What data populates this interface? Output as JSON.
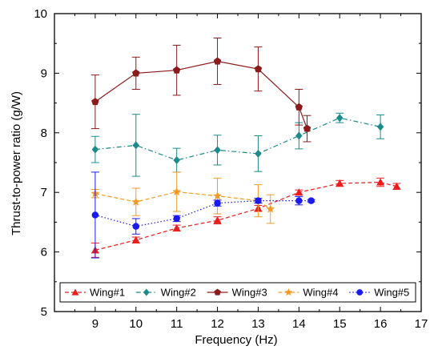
{
  "chart_data": {
    "type": "line",
    "title": "",
    "xlabel": "Frequency (Hz)",
    "ylabel": "Thrust-to-power ratio (g/W)",
    "xlim": [
      8,
      17
    ],
    "ylim": [
      5,
      10
    ],
    "x_ticks": [
      "9",
      "10",
      "11",
      "12",
      "13",
      "14",
      "15",
      "16",
      "17"
    ],
    "y_ticks": [
      "5",
      "6",
      "7",
      "8",
      "9",
      "10"
    ],
    "grid": false,
    "legend_position": "bottom",
    "series": [
      {
        "name": "Wing#1",
        "color": "#ee1c1c",
        "marker": "triangle",
        "line_style": "dashed",
        "x": [
          9,
          10,
          11,
          12,
          13,
          14,
          15,
          16,
          16.4
        ],
        "y": [
          6.03,
          6.2,
          6.4,
          6.53,
          6.73,
          7.0,
          7.15,
          7.17,
          7.1
        ],
        "err": [
          0.12,
          0.05,
          0.05,
          0.06,
          0.05,
          0.04,
          0.05,
          0.07,
          0.05
        ]
      },
      {
        "name": "Wing#2",
        "color": "#1b8a8a",
        "marker": "diamond",
        "line_style": "dash-dot",
        "x": [
          9,
          10,
          11,
          12,
          13,
          14,
          15,
          16
        ],
        "y": [
          7.72,
          7.79,
          7.54,
          7.71,
          7.65,
          7.95,
          8.25,
          8.1
        ],
        "err": [
          0.22,
          0.52,
          0.2,
          0.25,
          0.3,
          0.22,
          0.08,
          0.2
        ]
      },
      {
        "name": "Wing#3",
        "color": "#8b1a1a",
        "marker": "pentagon",
        "line_style": "solid",
        "x": [
          9,
          10,
          11,
          12,
          13,
          14,
          14.2
        ],
        "y": [
          8.52,
          9.0,
          9.05,
          9.2,
          9.07,
          8.43,
          8.07
        ],
        "err": [
          0.45,
          0.27,
          0.42,
          0.39,
          0.37,
          0.3,
          0.22
        ]
      },
      {
        "name": "Wing#4",
        "color": "#f59a28",
        "marker": "star",
        "line_style": "dashed",
        "x": [
          9,
          10,
          11,
          12,
          13,
          13.3
        ],
        "y": [
          6.98,
          6.84,
          7.01,
          6.94,
          6.86,
          6.72
        ],
        "err": [
          0.07,
          0.23,
          0.33,
          0.3,
          0.27,
          0.24
        ]
      },
      {
        "name": "Wing#5",
        "color": "#1a1aee",
        "marker": "circle",
        "line_style": "dotted",
        "x": [
          9,
          10,
          11,
          12,
          13,
          14,
          14.3
        ],
        "y": [
          6.62,
          6.43,
          6.56,
          6.82,
          6.86,
          6.86,
          6.86
        ],
        "err": [
          0.72,
          0.13,
          0.05,
          0.05,
          0.04,
          0.07,
          0.02
        ]
      }
    ]
  }
}
